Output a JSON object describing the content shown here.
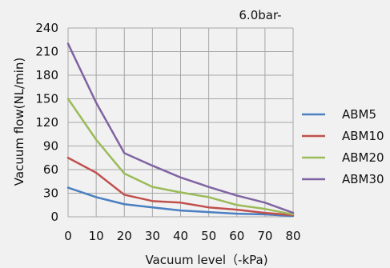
{
  "chart_data": {
    "type": "line",
    "title": "6.0bar-",
    "xlabel": "Vacuum level（-kPa)",
    "ylabel": "Vacuum flow(NL/min)",
    "x": [
      0,
      10,
      20,
      30,
      40,
      50,
      60,
      70,
      80
    ],
    "xlim": [
      0,
      80
    ],
    "ylim": [
      0,
      240
    ],
    "xticks": [
      0,
      10,
      20,
      30,
      40,
      50,
      60,
      70,
      80
    ],
    "yticks": [
      0,
      30,
      60,
      90,
      120,
      150,
      180,
      210,
      240
    ],
    "grid": true,
    "legend_position": "right",
    "series": [
      {
        "name": "ABM5",
        "color": "#4a7fc1",
        "values": [
          37,
          25,
          16,
          12,
          8,
          6,
          4,
          3,
          1
        ]
      },
      {
        "name": "ABM10",
        "color": "#c0504d",
        "values": [
          75,
          56,
          28,
          20,
          18,
          12,
          9,
          5,
          2
        ]
      },
      {
        "name": "ABM20",
        "color": "#9bbb59",
        "values": [
          150,
          98,
          55,
          38,
          31,
          25,
          15,
          10,
          3
        ]
      },
      {
        "name": "ABM30",
        "color": "#8064a2",
        "values": [
          220,
          145,
          81,
          65,
          50,
          38,
          27,
          18,
          5
        ]
      }
    ]
  }
}
